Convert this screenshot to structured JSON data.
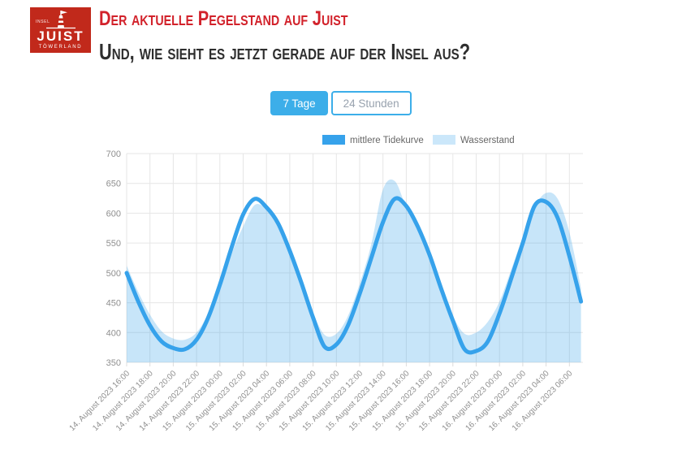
{
  "header": {
    "logo": {
      "top": "INSEL",
      "name": "JUIST",
      "sub": "TÖWERLAND"
    },
    "title": "Der aktuelle Pegelstand auf Juist",
    "subtitle": "Und, wie sieht es jetzt gerade auf der Insel aus?"
  },
  "tabs": [
    {
      "label": "7 Tage",
      "active": true
    },
    {
      "label": "24 Stunden",
      "active": false
    }
  ],
  "colors": {
    "accent": "#3caee9",
    "heading_red": "#d2222b",
    "logo_red": "#c1291b",
    "heading_dark": "#2e2e2e",
    "line": "#36a2eb",
    "area_fill": "rgba(54,162,235,0.28)",
    "area_legend": "#cbe7fa",
    "grid": "#e6e6e6",
    "tick_mark": "#dcdcdc",
    "tick_text": "#8f8f8f",
    "legend_text": "#666666"
  },
  "chart_data": {
    "type": "line",
    "title": "",
    "ylim": [
      350,
      700
    ],
    "ytick_step": 50,
    "grid": true,
    "legend_position": "top",
    "x_hours_per_point": 1,
    "x_tick_every_points": 2,
    "x_tick_labels": [
      "14. August 2023 16:00",
      "14. August 2023 18:00",
      "14. August 2023 20:00",
      "14. August 2023 22:00",
      "15. August 2023 00:00",
      "15. August 2023 02:00",
      "15. August 2023 04:00",
      "15. August 2023 06:00",
      "15. August 2023 08:00",
      "15. August 2023 10:00",
      "15. August 2023 12:00",
      "15. August 2023 14:00",
      "15. August 2023 16:00",
      "15. August 2023 18:00",
      "15. August 2023 20:00",
      "15. August 2023 22:00",
      "16. August 2023 00:00",
      "16. August 2023 02:00",
      "16. August 2023 04:00",
      "16. August 2023 06:00"
    ],
    "series": [
      {
        "name": "mittlere Tidekurve",
        "style": "line",
        "color": "#36a2eb",
        "values": [
          500,
          452,
          412,
          385,
          374,
          372,
          388,
          425,
          480,
          542,
          598,
          624,
          610,
          583,
          537,
          483,
          425,
          376,
          380,
          412,
          465,
          525,
          585,
          624,
          612,
          577,
          530,
          473,
          420,
          372,
          369,
          385,
          432,
          490,
          550,
          612,
          619,
          592,
          528,
          452
        ]
      },
      {
        "name": "Wasserstand",
        "style": "area",
        "color": "#cbe7fa",
        "fill": "rgba(54,162,235,0.28)",
        "values": [
          512,
          468,
          430,
          402,
          390,
          388,
          400,
          432,
          480,
          532,
          578,
          614,
          606,
          576,
          533,
          482,
          432,
          396,
          398,
          428,
          482,
          548,
          640,
          654,
          610,
          572,
          528,
          480,
          428,
          398,
          400,
          418,
          452,
          505,
          560,
          610,
          634,
          624,
          568,
          475
        ]
      }
    ]
  }
}
